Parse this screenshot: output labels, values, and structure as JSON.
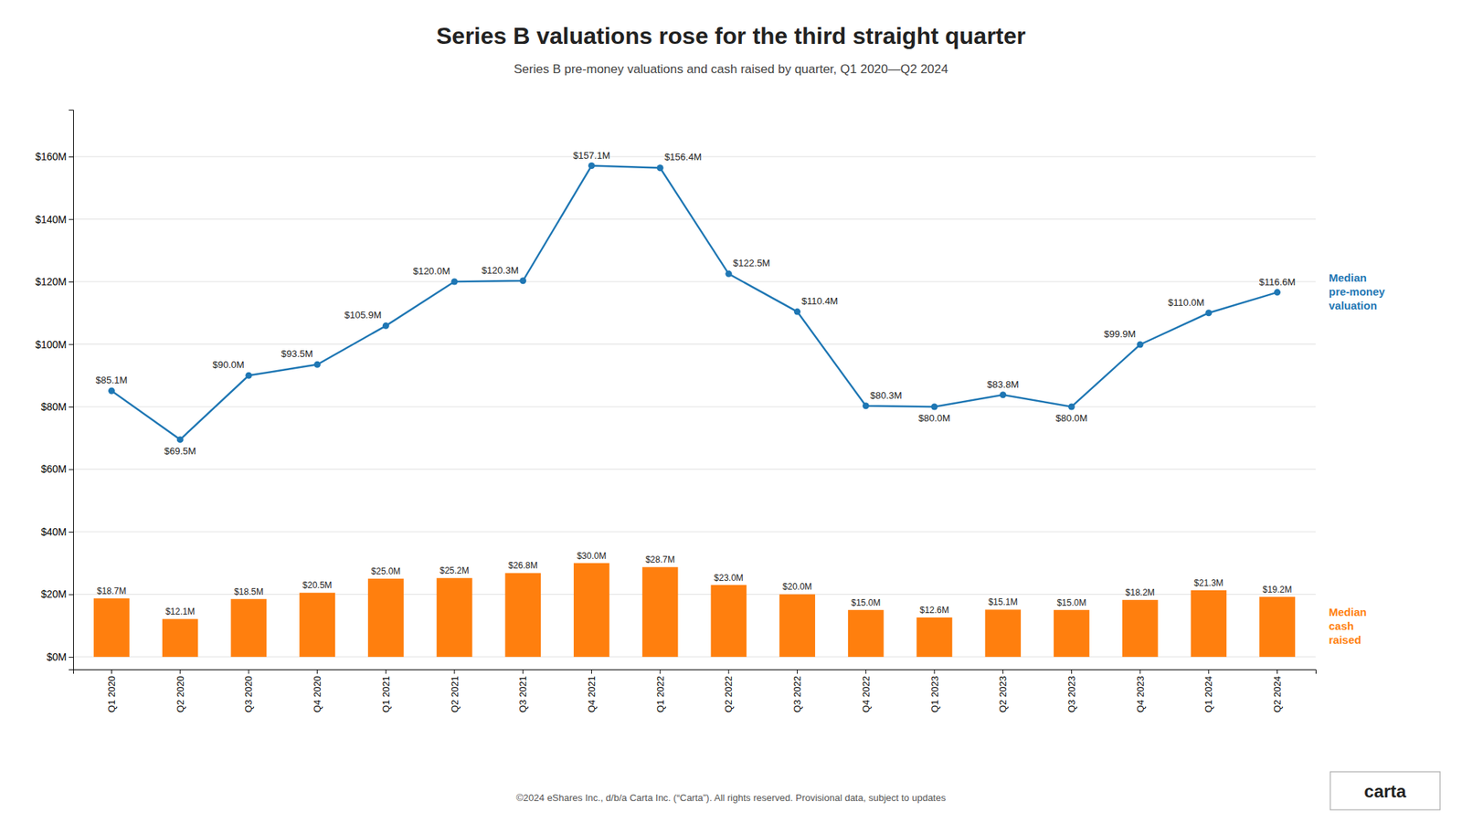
{
  "chart_data": {
    "type": "bar",
    "title": "Series B valuations rose for the third straight quarter",
    "subtitle": "Series B pre-money valuations and cash raised by quarter, Q1 2020—Q2 2024",
    "annotations": [
      "©2024 eShares Inc., d/b/a Carta Inc. (“Carta”). All rights reserved. Provisional data, subject to updates",
      "carta"
    ],
    "categories": [
      "Q1 2020",
      "Q2 2020",
      "Q3 2020",
      "Q4 2020",
      "Q1 2021",
      "Q2 2021",
      "Q3 2021",
      "Q4 2021",
      "Q1 2022",
      "Q2 2022",
      "Q3 2022",
      "Q4 2022",
      "Q1 2023",
      "Q2 2023",
      "Q3 2023",
      "Q4 2023",
      "Q1 2024",
      "Q2 2024"
    ],
    "series": [
      {
        "name": "Median\npre-money\nvaluation",
        "type": "line",
        "marker": "circle",
        "values": [
          85.1,
          69.5,
          90.0,
          93.5,
          105.9,
          120.0,
          120.3,
          157.1,
          156.4,
          122.5,
          110.4,
          80.3,
          80.0,
          83.8,
          80.0,
          99.9,
          110.0,
          116.6
        ],
        "value_labels": [
          "$85.1M",
          "$69.5M",
          "$90.0M",
          "$93.5M",
          "$105.9M",
          "$120.0M",
          "$120.3M",
          "$157.1M",
          "$156.4M",
          "$122.5M",
          "$110.4M",
          "$80.3M",
          "$80.0M",
          "$83.8M",
          "$80.0M",
          "$99.9M",
          "$110.0M",
          "$116.6M"
        ]
      },
      {
        "name": "Median\ncash\nraised",
        "type": "bar",
        "values": [
          18.7,
          12.1,
          18.5,
          20.5,
          25.0,
          25.2,
          26.8,
          30.0,
          28.7,
          23.0,
          20.0,
          15.0,
          12.6,
          15.1,
          15.0,
          18.2,
          21.3,
          19.2
        ],
        "value_labels": [
          "$18.7M",
          "$12.1M",
          "$18.5M",
          "$20.5M",
          "$25.0M",
          "$25.2M",
          "$26.8M",
          "$30.0M",
          "$28.7M",
          "$23.0M",
          "$20.0M",
          "$15.0M",
          "$12.6M",
          "$15.1M",
          "$15.0M",
          "$18.2M",
          "$21.3M",
          "$19.2M"
        ]
      }
    ],
    "ylim": [
      -4,
      175
    ],
    "yticks": [
      {
        "value": 0,
        "label": "$0M"
      },
      {
        "value": 20,
        "label": "$20M"
      },
      {
        "value": 40,
        "label": "$40M"
      },
      {
        "value": 60,
        "label": "$60M"
      },
      {
        "value": 80,
        "label": "$80M"
      },
      {
        "value": 100,
        "label": "$100M"
      },
      {
        "value": 120,
        "label": "$120M"
      },
      {
        "value": 140,
        "label": "$140M"
      },
      {
        "value": 160,
        "label": "$160M"
      }
    ],
    "grid": true,
    "legend": "right",
    "data_labels": true
  }
}
